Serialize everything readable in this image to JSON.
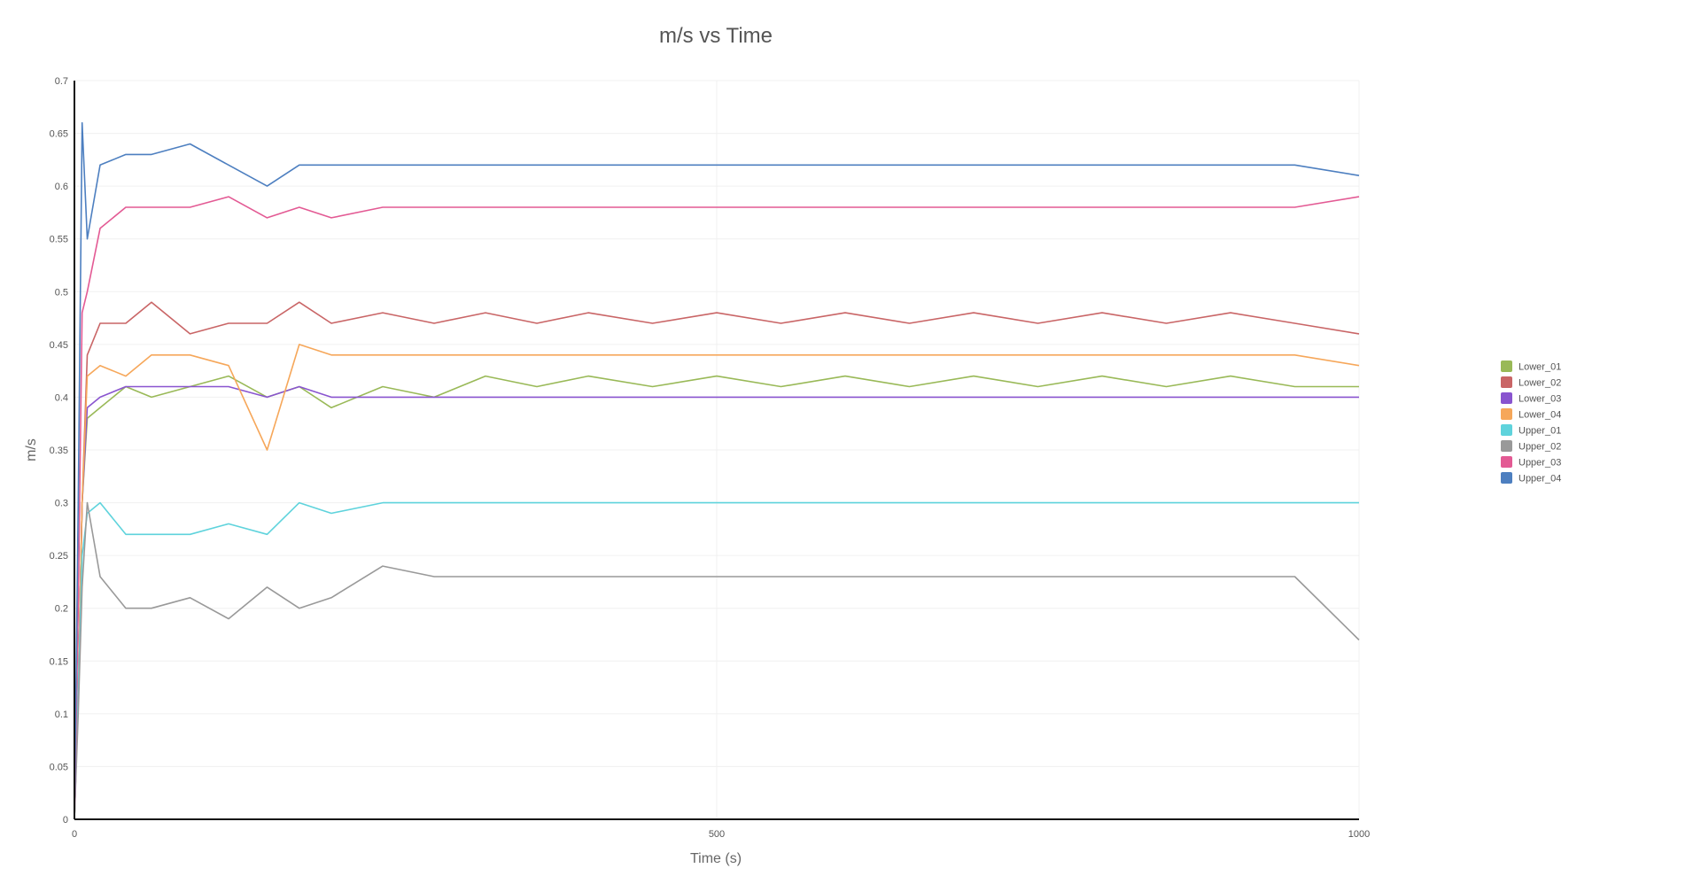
{
  "chart_data": {
    "type": "line",
    "title": "m/s vs Time",
    "xlabel": "Time (s)",
    "ylabel": "m/s",
    "xlim": [
      0,
      1000
    ],
    "ylim": [
      0,
      0.7
    ],
    "x_ticks": [
      0,
      500,
      1000
    ],
    "y_ticks": [
      0,
      0.05,
      0.1,
      0.15,
      0.2,
      0.25,
      0.3,
      0.35,
      0.4,
      0.45,
      0.5,
      0.55,
      0.6,
      0.65,
      0.7
    ],
    "grid": true,
    "legend_position": "right",
    "series": [
      {
        "name": "Lower_01",
        "color": "#99b957",
        "x": [
          0,
          3,
          6,
          10,
          20,
          40,
          60,
          90,
          120,
          150,
          175,
          200,
          240,
          280,
          320,
          360,
          400,
          450,
          500,
          550,
          600,
          650,
          700,
          750,
          800,
          850,
          900,
          950,
          1000
        ],
        "y": [
          0.0,
          0.12,
          0.3,
          0.38,
          0.39,
          0.41,
          0.4,
          0.41,
          0.42,
          0.4,
          0.41,
          0.39,
          0.41,
          0.4,
          0.42,
          0.41,
          0.42,
          0.41,
          0.42,
          0.41,
          0.42,
          0.41,
          0.42,
          0.41,
          0.42,
          0.41,
          0.42,
          0.41,
          0.41
        ]
      },
      {
        "name": "Lower_02",
        "color": "#c96566",
        "x": [
          0,
          3,
          6,
          10,
          20,
          40,
          60,
          90,
          120,
          150,
          175,
          200,
          240,
          280,
          320,
          360,
          400,
          450,
          500,
          550,
          600,
          650,
          700,
          750,
          800,
          850,
          900,
          950,
          1000
        ],
        "y": [
          0.0,
          0.12,
          0.3,
          0.44,
          0.47,
          0.47,
          0.49,
          0.46,
          0.47,
          0.47,
          0.49,
          0.47,
          0.48,
          0.47,
          0.48,
          0.47,
          0.48,
          0.47,
          0.48,
          0.47,
          0.48,
          0.47,
          0.48,
          0.47,
          0.48,
          0.47,
          0.48,
          0.47,
          0.46
        ]
      },
      {
        "name": "Lower_03",
        "color": "#8954cf",
        "x": [
          0,
          3,
          6,
          10,
          20,
          40,
          60,
          90,
          120,
          150,
          175,
          200,
          240,
          280,
          320,
          360,
          400,
          450,
          500,
          550,
          600,
          650,
          700,
          750,
          800,
          850,
          900,
          950,
          1000
        ],
        "y": [
          0.0,
          0.12,
          0.3,
          0.39,
          0.4,
          0.41,
          0.41,
          0.41,
          0.41,
          0.4,
          0.41,
          0.4,
          0.4,
          0.4,
          0.4,
          0.4,
          0.4,
          0.4,
          0.4,
          0.4,
          0.4,
          0.4,
          0.4,
          0.4,
          0.4,
          0.4,
          0.4,
          0.4,
          0.4
        ]
      },
      {
        "name": "Lower_04",
        "color": "#f6a75a",
        "x": [
          0,
          3,
          6,
          10,
          20,
          40,
          60,
          90,
          120,
          150,
          175,
          200,
          240,
          280,
          320,
          360,
          400,
          450,
          500,
          550,
          600,
          650,
          700,
          750,
          800,
          850,
          900,
          950,
          1000
        ],
        "y": [
          0.0,
          0.12,
          0.3,
          0.42,
          0.43,
          0.42,
          0.44,
          0.44,
          0.43,
          0.35,
          0.45,
          0.44,
          0.44,
          0.44,
          0.44,
          0.44,
          0.44,
          0.44,
          0.44,
          0.44,
          0.44,
          0.44,
          0.44,
          0.44,
          0.44,
          0.44,
          0.44,
          0.44,
          0.43
        ]
      },
      {
        "name": "Upper_01",
        "color": "#5fd3dc",
        "x": [
          0,
          3,
          6,
          10,
          20,
          40,
          60,
          90,
          120,
          150,
          175,
          200,
          240,
          280,
          320,
          360,
          400,
          450,
          500,
          550,
          600,
          650,
          700,
          750,
          800,
          850,
          900,
          950,
          1000
        ],
        "y": [
          0.0,
          0.12,
          0.25,
          0.29,
          0.3,
          0.27,
          0.27,
          0.27,
          0.28,
          0.27,
          0.3,
          0.29,
          0.3,
          0.3,
          0.3,
          0.3,
          0.3,
          0.3,
          0.3,
          0.3,
          0.3,
          0.3,
          0.3,
          0.3,
          0.3,
          0.3,
          0.3,
          0.3,
          0.3
        ]
      },
      {
        "name": "Upper_02",
        "color": "#999999",
        "x": [
          0,
          3,
          6,
          10,
          20,
          40,
          60,
          90,
          120,
          150,
          175,
          200,
          240,
          280,
          320,
          360,
          400,
          450,
          500,
          550,
          600,
          650,
          700,
          750,
          800,
          850,
          900,
          950,
          1000
        ],
        "y": [
          0.0,
          0.1,
          0.22,
          0.3,
          0.23,
          0.2,
          0.2,
          0.21,
          0.19,
          0.22,
          0.2,
          0.21,
          0.24,
          0.23,
          0.23,
          0.23,
          0.23,
          0.23,
          0.23,
          0.23,
          0.23,
          0.23,
          0.23,
          0.23,
          0.23,
          0.23,
          0.23,
          0.23,
          0.17
        ]
      },
      {
        "name": "Upper_03",
        "color": "#e35a94",
        "x": [
          0,
          3,
          6,
          10,
          20,
          40,
          60,
          90,
          120,
          150,
          175,
          200,
          240,
          280,
          320,
          360,
          400,
          450,
          500,
          550,
          600,
          650,
          700,
          750,
          800,
          850,
          900,
          950,
          1000
        ],
        "y": [
          0.0,
          0.2,
          0.48,
          0.5,
          0.56,
          0.58,
          0.58,
          0.58,
          0.59,
          0.57,
          0.58,
          0.57,
          0.58,
          0.58,
          0.58,
          0.58,
          0.58,
          0.58,
          0.58,
          0.58,
          0.58,
          0.58,
          0.58,
          0.58,
          0.58,
          0.58,
          0.58,
          0.58,
          0.59
        ]
      },
      {
        "name": "Upper_04",
        "color": "#4d7fc0",
        "x": [
          0,
          3,
          6,
          10,
          20,
          40,
          60,
          90,
          120,
          150,
          175,
          200,
          240,
          280,
          320,
          360,
          400,
          450,
          500,
          550,
          600,
          650,
          700,
          750,
          800,
          850,
          900,
          950,
          1000
        ],
        "y": [
          0.0,
          0.3,
          0.66,
          0.55,
          0.62,
          0.63,
          0.63,
          0.64,
          0.62,
          0.6,
          0.62,
          0.62,
          0.62,
          0.62,
          0.62,
          0.62,
          0.62,
          0.62,
          0.62,
          0.62,
          0.62,
          0.62,
          0.62,
          0.62,
          0.62,
          0.62,
          0.62,
          0.62,
          0.61
        ]
      }
    ]
  }
}
